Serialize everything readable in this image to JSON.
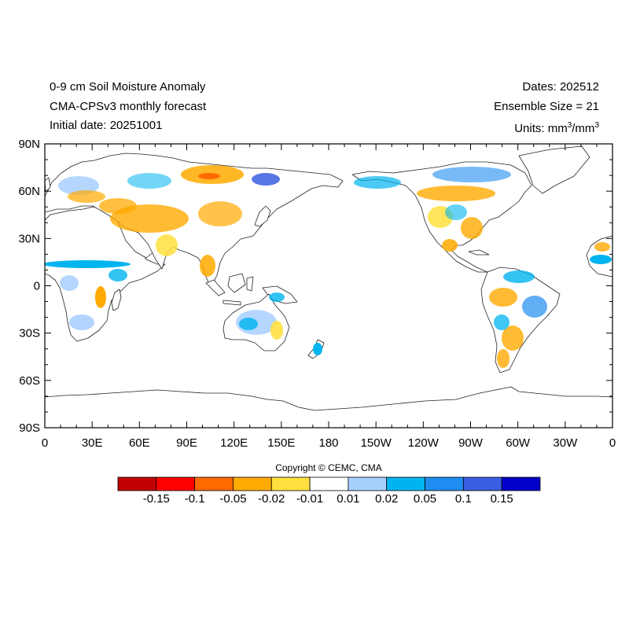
{
  "title": {
    "line1": "0-9 cm Soil Moisture Anomaly",
    "line2": "CMA-CPSv3 monthly forecast",
    "line3": "Initial date: 20251001"
  },
  "info": {
    "dates": "Dates: 202512",
    "ensemble": "Ensemble Size = 21",
    "units_prefix": "Units: mm",
    "units_mid": "/mm",
    "units_exp": "3"
  },
  "axes": {
    "lat_labels": [
      "90N",
      "60N",
      "30N",
      "0",
      "30S",
      "60S",
      "90S"
    ],
    "lon_labels": [
      "0",
      "30E",
      "60E",
      "90E",
      "120E",
      "150E",
      "180",
      "150W",
      "120W",
      "90W",
      "60W",
      "30W",
      "0"
    ]
  },
  "copyright": "Copyright © CEMC, CMA",
  "colorbar": {
    "colors": [
      "#c00000",
      "#ff0000",
      "#ff6a00",
      "#ffaa00",
      "#ffe040",
      "#ffffff",
      "#a8d0ff",
      "#00b4f0",
      "#1e8cf0",
      "#3a5fe0",
      "#0000c8"
    ],
    "labels": [
      "-0.15",
      "-0.1",
      "-0.05",
      "-0.02",
      "-0.01",
      "0.01",
      "0.02",
      "0.05",
      "0.1",
      "0.15"
    ]
  }
}
